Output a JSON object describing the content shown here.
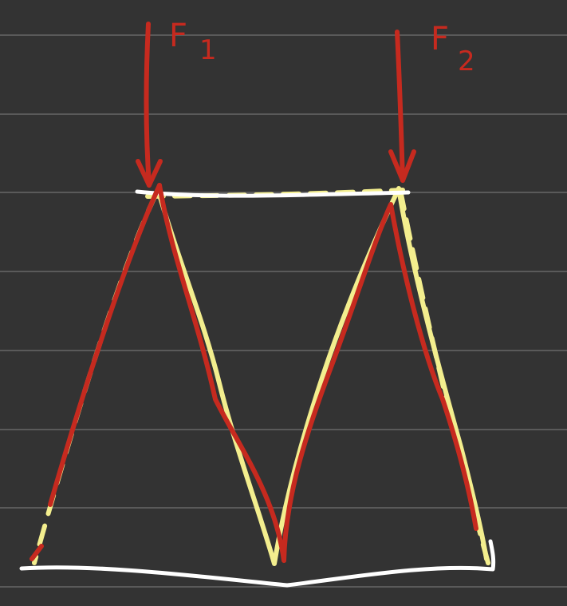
{
  "colors": {
    "background": "#333333",
    "ruled_line": "#5a5a5a",
    "frame": "#ffffff",
    "force": "#c62a1f",
    "deformed": "#f3ee8e"
  },
  "labels": {
    "f1_letter": "F",
    "f1_index": "1",
    "f2_letter": "F",
    "f2_index": "2"
  }
}
